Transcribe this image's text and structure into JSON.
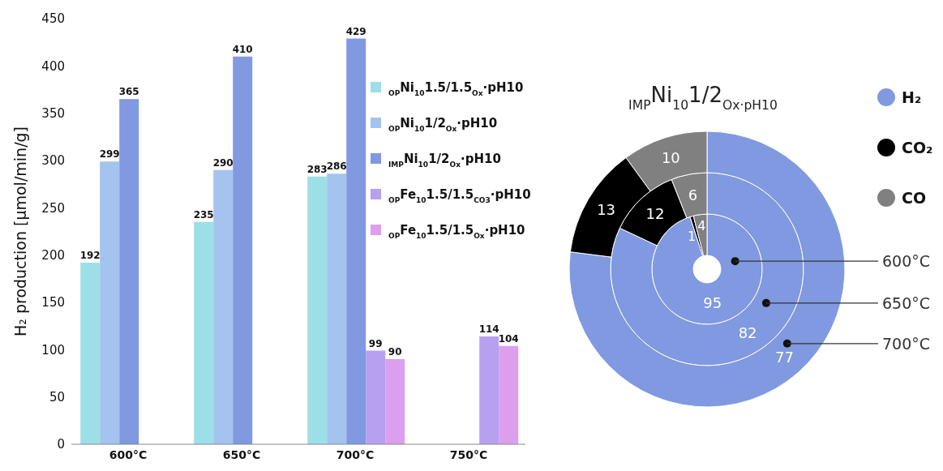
{
  "chart_data": [
    {
      "type": "bar",
      "ylabel": "H₂ production [µmol/min/g]",
      "categories": [
        "600°C",
        "650°C",
        "700°C",
        "750°C"
      ],
      "ylim": [
        0,
        450
      ],
      "yticks": [
        0,
        50,
        100,
        150,
        200,
        250,
        300,
        350,
        400,
        450
      ],
      "legend": "top right",
      "data_labels": true,
      "series": [
        {
          "name": "$_{OP}$Ni$_{10}$1.5/1.5$_{Ox}$·pH10",
          "color": "#9ddfe6",
          "values": [
            192,
            235,
            283,
            null
          ]
        },
        {
          "name": "$_{OP}$Ni$_{10}$1/2$_{Ox}$·pH10",
          "color": "#a5c3ef",
          "values": [
            299,
            290,
            286,
            null
          ]
        },
        {
          "name": "$_{IMP}$Ni$_{10}$1/2$_{Ox}$·pH10",
          "color": "#8099e0",
          "values": [
            365,
            410,
            429,
            null
          ]
        },
        {
          "name": "$_{OP}$Fe$_{10}$1.5/1.5$_{CO3}$·pH10",
          "color": "#b7a0f0",
          "values": [
            null,
            null,
            99,
            114
          ]
        },
        {
          "name": "$_{OP}$Fe$_{10}$1.5/1.5$_{Ox}$·pH10",
          "color": "#dc9fee",
          "values": [
            null,
            null,
            90,
            104
          ]
        }
      ]
    },
    {
      "type": "donut",
      "title": "$_{IMP}$Ni$_{10}$1/2$_{Ox·pH10}$",
      "categories": [
        "H₂",
        "CO₂",
        "CO"
      ],
      "colors": [
        "#8099e0",
        "#000000",
        "#808080"
      ],
      "legend": "right",
      "data_labels": true,
      "series": [
        {
          "name": "600°C",
          "values": [
            95,
            1,
            4
          ]
        },
        {
          "name": "650°C",
          "values": [
            82,
            12,
            6
          ]
        },
        {
          "name": "700°C",
          "values": [
            77,
            13,
            10
          ]
        }
      ]
    }
  ]
}
